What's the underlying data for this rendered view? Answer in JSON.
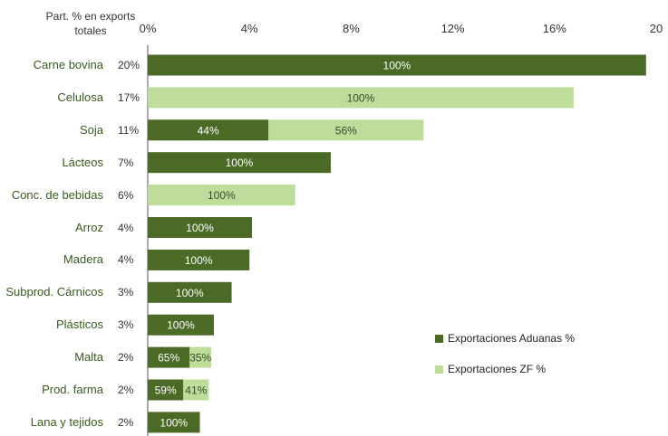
{
  "chart_data": {
    "type": "bar",
    "orientation": "horizontal",
    "stacked": true,
    "header_label": "Part. % en exports totales",
    "categories": [
      "Carne bovina",
      "Celulosa",
      "Soja",
      "Lácteos",
      "Conc. de bebidas",
      "Arroz",
      "Madera",
      "Subprod. Cárnicos",
      "Plásticos",
      "Malta",
      "Prod. farma",
      "Lana y tejidos"
    ],
    "share_labels": [
      "20%",
      "17%",
      "11%",
      "7%",
      "6%",
      "4%",
      "4%",
      "3%",
      "3%",
      "2%",
      "2%",
      "2%"
    ],
    "x_ticks": [
      "0%",
      "4%",
      "8%",
      "12%",
      "16%",
      "20"
    ],
    "xlim": [
      0,
      20
    ],
    "series": [
      {
        "name": "Exportaciones Aduanas %",
        "color": "#4a6a25",
        "values": [
          19.6,
          0,
          4.75,
          7.2,
          0,
          4.1,
          4.0,
          3.3,
          2.6,
          1.65,
          1.4,
          2.05
        ],
        "labels": [
          "100%",
          "",
          "44%",
          "100%",
          "",
          "100%",
          "100%",
          "100%",
          "100%",
          "65%",
          "59%",
          "100%"
        ]
      },
      {
        "name": "Exportaciones ZF %",
        "color": "#bedd9a",
        "values": [
          0,
          16.75,
          6.1,
          0,
          5.8,
          0,
          0,
          0,
          0,
          0.85,
          1.0,
          0
        ],
        "labels": [
          "",
          "100%",
          "56%",
          "",
          "100%",
          "",
          "",
          "",
          "",
          "35%",
          "41%",
          ""
        ]
      }
    ],
    "grid": false,
    "legend_position": "right"
  }
}
